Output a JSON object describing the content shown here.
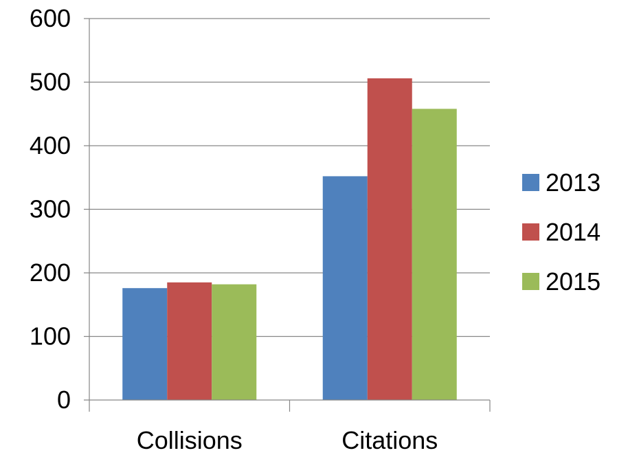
{
  "chart_data": {
    "type": "bar",
    "categories": [
      "Collisions",
      "Citations"
    ],
    "series": [
      {
        "name": "2013",
        "values": [
          176,
          352
        ],
        "color": "#4f81bd"
      },
      {
        "name": "2014",
        "values": [
          185,
          506
        ],
        "color": "#c0504d"
      },
      {
        "name": "2015",
        "values": [
          182,
          458
        ],
        "color": "#9bbb59"
      }
    ],
    "yticks": [
      "0",
      "100",
      "200",
      "300",
      "400",
      "500",
      "600"
    ],
    "ylim": [
      0,
      600
    ],
    "grid": true,
    "legend_position": "right"
  }
}
